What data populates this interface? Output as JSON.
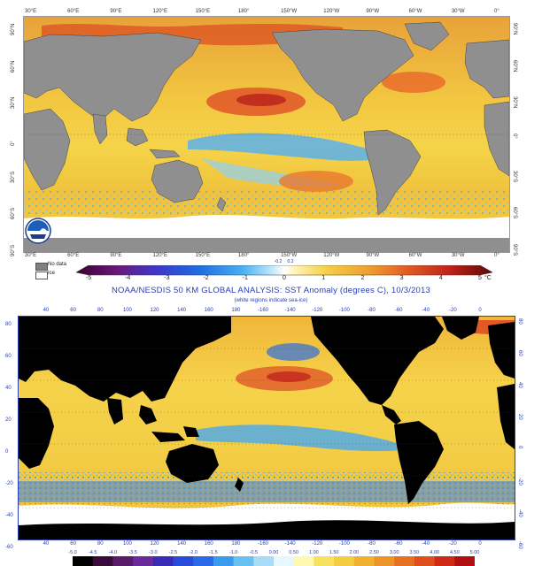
{
  "top_map": {
    "lon_labels": [
      "30°E",
      "60°E",
      "90°E",
      "120°E",
      "150°E",
      "180°",
      "150°W",
      "120°W",
      "90°W",
      "60°W",
      "30°W",
      "0°"
    ],
    "lat_labels_left": [
      "90°N",
      "60°N",
      "30°N",
      "0°",
      "30°S",
      "60°S",
      "90°S"
    ],
    "lat_labels_right": [
      "90°N",
      "60°N",
      "30°N",
      "0°",
      "30°S",
      "60°S",
      "90°S"
    ],
    "logo": "NOAA"
  },
  "top_legend": {
    "nodata_label": "No data",
    "ice_label": "Ice",
    "ticks": [
      "-5",
      "-4",
      "-3",
      "-2",
      "-1",
      "0",
      "1",
      "2",
      "3",
      "4",
      "5"
    ],
    "small_ticks": [
      "-0.2",
      "0.2"
    ],
    "unit": "°C",
    "colors": {
      "nodata": "#808080",
      "land": "#8f8f8f"
    }
  },
  "bottom_map": {
    "title": "NOAA/NESDIS 50 KM GLOBAL ANALYSIS: SST Anomaly (degrees C), 10/3/2013",
    "subtitle": "(white regions indicate sea-ice)",
    "lon_labels": [
      "40",
      "60",
      "80",
      "100",
      "120",
      "140",
      "160",
      "180",
      "-160",
      "-140",
      "-120",
      "-100",
      "-80",
      "-60",
      "-40",
      "-20",
      "0"
    ],
    "lat_labels": [
      "80",
      "60",
      "40",
      "20",
      "0",
      "-20",
      "-40",
      "-60"
    ],
    "colors": {
      "land": "#000000",
      "ice": "#ffffff",
      "frame": "#2a3fb0"
    }
  },
  "bottom_legend": {
    "ticks": [
      "-5.0",
      "-4.5",
      "-4.0",
      "-3.5",
      "-3.0",
      "-2.5",
      "-2.0",
      "-1.5",
      "-1.0",
      "-0.5",
      "0.00",
      "0.50",
      "1.00",
      "1.50",
      "2.00",
      "2.50",
      "3.00",
      "3.50",
      "4.00",
      "4.50",
      "5.00"
    ]
  }
}
